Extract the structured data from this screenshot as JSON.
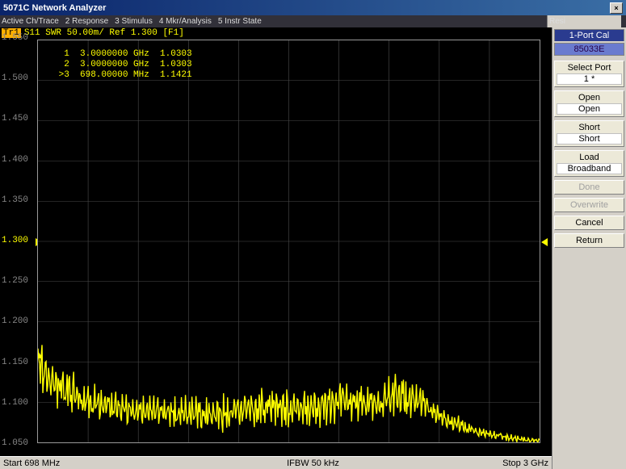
{
  "window": {
    "title": "5071C Network Analyzer"
  },
  "menu": {
    "items": [
      "Active Ch/Trace",
      "2 Response",
      "3 Stimulus",
      "4 Mkr/Analysis",
      "5 Instr State"
    ],
    "right": "Resi"
  },
  "trace_header": {
    "label": "Tr1",
    "text": "S11 SWR 50.00m/ Ref 1.300 [F1]"
  },
  "markers": {
    "lines": [
      "  1  3.0000000 GHz  1.0303",
      "  2  3.0000000 GHz  1.0303",
      " >3  698.00000 MHz  1.1421"
    ]
  },
  "chart": {
    "type": "line",
    "ymin": 1.05,
    "ymax": 1.55,
    "ystep": 0.05,
    "ref": 1.3,
    "ylabels": [
      "1.550",
      "1.500",
      "1.450",
      "1.400",
      "1.350",
      "1.300",
      "1.250",
      "1.200",
      "1.150",
      "1.100",
      "1.050"
    ],
    "trace_color": "#ffff00",
    "grid_color": "#4a4a4a",
    "background": "#000000",
    "text_color": "#9a9a9a",
    "xgrid_divisions": 10,
    "seed": 7,
    "density": 620,
    "base": [
      [
        0.0,
        1.15
      ],
      [
        0.02,
        1.13
      ],
      [
        0.05,
        1.115
      ],
      [
        0.08,
        1.105
      ],
      [
        0.12,
        1.098
      ],
      [
        0.16,
        1.092
      ],
      [
        0.2,
        1.09
      ],
      [
        0.24,
        1.088
      ],
      [
        0.28,
        1.086
      ],
      [
        0.32,
        1.085
      ],
      [
        0.36,
        1.086
      ],
      [
        0.4,
        1.09
      ],
      [
        0.44,
        1.093
      ],
      [
        0.48,
        1.095
      ],
      [
        0.52,
        1.093
      ],
      [
        0.56,
        1.096
      ],
      [
        0.6,
        1.1
      ],
      [
        0.64,
        1.098
      ],
      [
        0.68,
        1.096
      ],
      [
        0.72,
        1.11
      ],
      [
        0.76,
        1.102
      ],
      [
        0.8,
        1.082
      ],
      [
        0.84,
        1.072
      ],
      [
        0.88,
        1.062
      ],
      [
        0.92,
        1.058
      ],
      [
        0.96,
        1.054
      ],
      [
        1.0,
        1.052
      ]
    ],
    "amp": [
      [
        0.0,
        0.045
      ],
      [
        0.04,
        0.04
      ],
      [
        0.08,
        0.036
      ],
      [
        0.14,
        0.032
      ],
      [
        0.22,
        0.028
      ],
      [
        0.3,
        0.028
      ],
      [
        0.38,
        0.03
      ],
      [
        0.46,
        0.034
      ],
      [
        0.54,
        0.036
      ],
      [
        0.6,
        0.036
      ],
      [
        0.66,
        0.028
      ],
      [
        0.72,
        0.04
      ],
      [
        0.78,
        0.02
      ],
      [
        0.84,
        0.014
      ],
      [
        0.9,
        0.008
      ],
      [
        0.96,
        0.005
      ],
      [
        1.0,
        0.004
      ]
    ],
    "marker3_x": 0.0
  },
  "status": {
    "start": "Start 698 MHz",
    "ifbw": "IFBW 50 kHz",
    "stop": "Stop 3 GHz"
  },
  "panel": {
    "title": "1-Port Cal",
    "subtitle": "85033E",
    "buttons": [
      {
        "id": "select-port",
        "label": "Select Port",
        "sub": "1 *",
        "enabled": true
      },
      {
        "id": "open",
        "label": "Open",
        "sub": "Open",
        "enabled": true
      },
      {
        "id": "short",
        "label": "Short",
        "sub": "Short",
        "enabled": true
      },
      {
        "id": "load",
        "label": "Load",
        "sub": "Broadband",
        "enabled": true
      },
      {
        "id": "done",
        "label": "Done",
        "sub": null,
        "enabled": false
      },
      {
        "id": "overwrite",
        "label": "Overwrite",
        "sub": null,
        "enabled": false
      },
      {
        "id": "cancel",
        "label": "Cancel",
        "sub": null,
        "enabled": true
      },
      {
        "id": "return",
        "label": "Return",
        "sub": null,
        "enabled": true
      }
    ]
  }
}
